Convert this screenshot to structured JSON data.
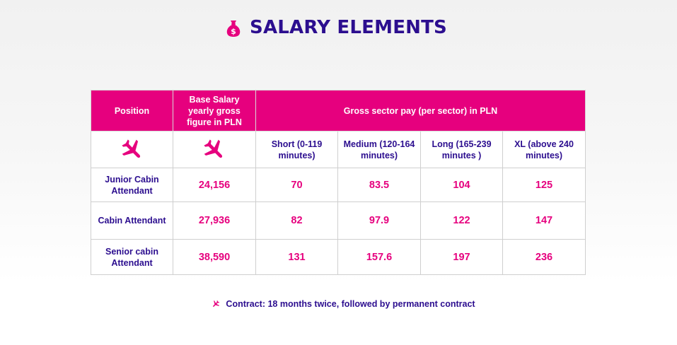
{
  "title": {
    "text": "SALARY ELEMENTS",
    "icon": "money-bag-icon"
  },
  "table": {
    "headers": {
      "position": "Position",
      "base_salary": "Base Salary yearly gross figure in PLN",
      "sector_pay": "Gross sector pay (per sector) in PLN"
    },
    "icon_row": {
      "position_icon": "airplane-icon",
      "base_salary_icon": "airplane-icon"
    },
    "sectors": [
      "Short (0-119 minutes)",
      "Medium (120-164 minutes)",
      "Long (165-239 minutes )",
      "XL (above 240 minutes)"
    ],
    "rows": [
      {
        "position": "Junior Cabin Attendant",
        "base_salary": "24,156",
        "short": "70",
        "medium": "83.5",
        "long": "104",
        "xl": "125"
      },
      {
        "position": "Cabin Attendant",
        "base_salary": "27,936",
        "short": "82",
        "medium": "97.9",
        "long": "122",
        "xl": "147"
      },
      {
        "position": "Senior cabin Attendant",
        "base_salary": "38,590",
        "short": "131",
        "medium": "157.6",
        "long": "197",
        "xl": "236"
      }
    ]
  },
  "footnote": {
    "icon": "airplane-icon",
    "text": "Contract: 18 months twice, followed by permanent contract"
  },
  "colors": {
    "accent_pink": "#e6007e",
    "brand_navy": "#2c0e8f",
    "header_text": "#ffffff",
    "border": "#cfcfcf"
  }
}
